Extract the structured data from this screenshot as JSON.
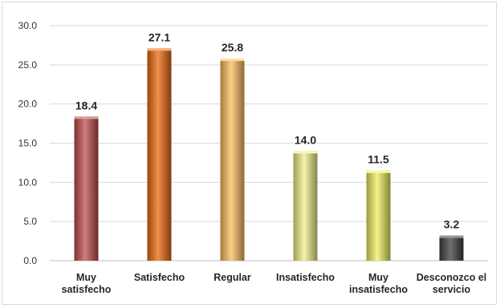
{
  "chart_data": {
    "type": "bar",
    "categories": [
      [
        "Muy",
        "satisfecho"
      ],
      [
        "Satisfecho"
      ],
      [
        "Regular"
      ],
      [
        "Insatisfecho"
      ],
      [
        "Muy",
        "insatisfecho"
      ],
      [
        "Desconozco el",
        "servicio"
      ]
    ],
    "values": [
      18.4,
      27.1,
      25.8,
      14.0,
      11.5,
      3.2
    ],
    "data_labels": [
      "18.4",
      "27.1",
      "25.8",
      "14.0",
      "11.5",
      "3.2"
    ],
    "yticks": [
      "0.0",
      "5.0",
      "10.0",
      "15.0",
      "20.0",
      "25.0",
      "30.0"
    ],
    "ylim": [
      0,
      30
    ],
    "grid": true,
    "colors": [
      "#c0504d",
      "#ee6a10",
      "#fbbf5c",
      "#f4f08c",
      "#f2ef62",
      "#404040"
    ]
  }
}
